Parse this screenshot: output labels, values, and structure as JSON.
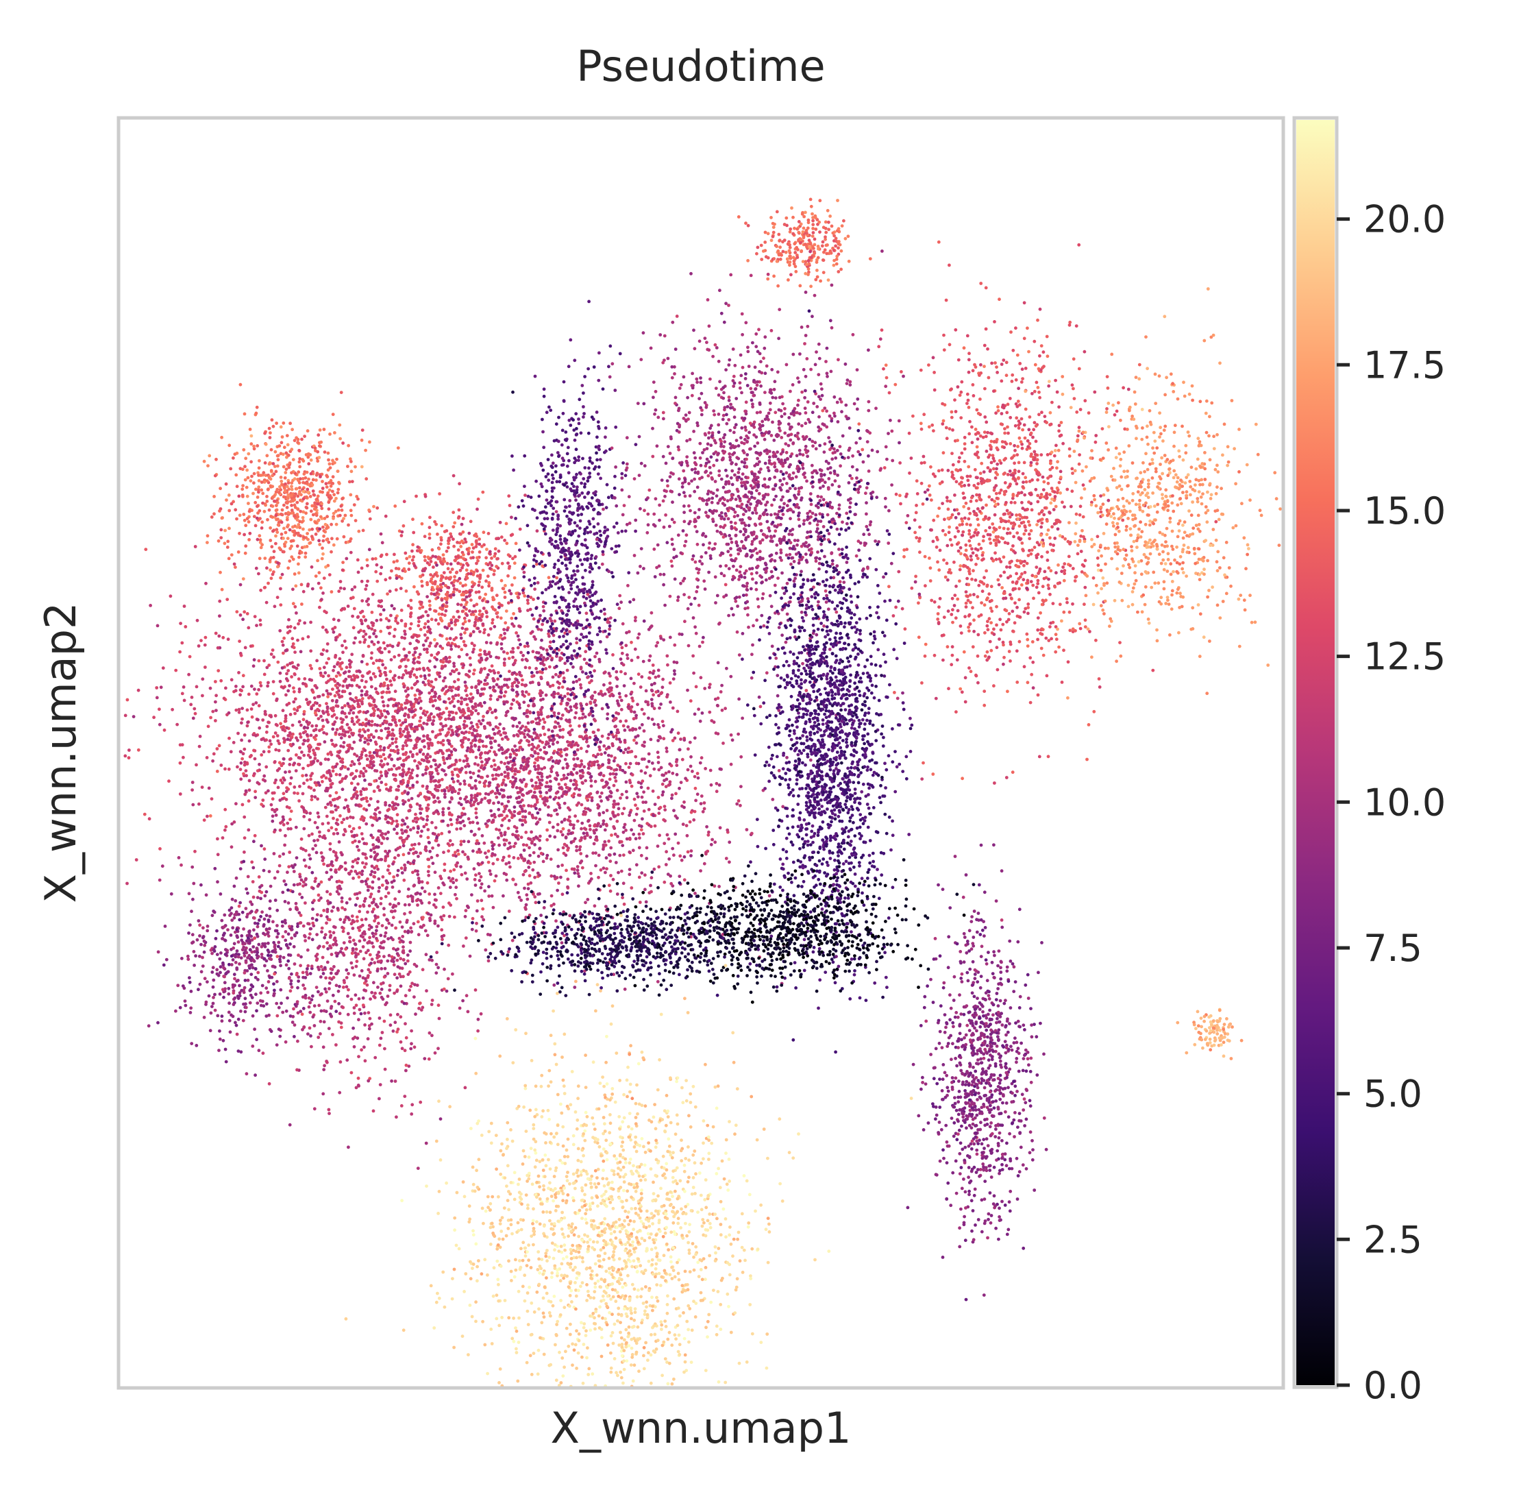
{
  "chart_data": {
    "type": "scatter",
    "title": "Pseudotime",
    "xlabel": "X_wnn.umap1",
    "ylabel": "X_wnn.umap2",
    "x_ticks_shown": false,
    "y_ticks_shown": false,
    "grid": false,
    "colormap": "magma",
    "colorbar": {
      "label": "",
      "vmin": 0.0,
      "vmax": 21.7,
      "ticks": [
        0.0,
        2.5,
        5.0,
        7.5,
        10.0,
        12.5,
        15.0,
        17.5,
        20.0
      ],
      "tick_labels": [
        "0.0",
        "2.5",
        "5.0",
        "7.5",
        "10.0",
        "12.5",
        "15.0",
        "17.5",
        "20.0"
      ]
    },
    "clusters": [
      {
        "name": "top-isolated",
        "x": 0.59,
        "y": 0.9,
        "sx": 0.02,
        "sy": 0.015,
        "n": 260,
        "value": 15.0
      },
      {
        "name": "upper-left-blob",
        "x": 0.15,
        "y": 0.7,
        "sx": 0.03,
        "sy": 0.03,
        "n": 700,
        "value": 15.2
      },
      {
        "name": "upper-left-small",
        "x": 0.29,
        "y": 0.64,
        "sx": 0.03,
        "sy": 0.025,
        "n": 450,
        "value": 14.0
      },
      {
        "name": "left-mass",
        "x": 0.23,
        "y": 0.52,
        "sx": 0.08,
        "sy": 0.06,
        "n": 2600,
        "value": 12.0
      },
      {
        "name": "center-left-mass",
        "x": 0.38,
        "y": 0.49,
        "sx": 0.07,
        "sy": 0.06,
        "n": 2000,
        "value": 11.0
      },
      {
        "name": "left-tail",
        "x": 0.11,
        "y": 0.34,
        "sx": 0.03,
        "sy": 0.03,
        "n": 500,
        "value": 9.0
      },
      {
        "name": "left-lower",
        "x": 0.21,
        "y": 0.36,
        "sx": 0.04,
        "sy": 0.06,
        "n": 900,
        "value": 11.0
      },
      {
        "name": "purple-arm",
        "x": 0.39,
        "y": 0.66,
        "sx": 0.02,
        "sy": 0.06,
        "n": 700,
        "value": 6.0
      },
      {
        "name": "upper-center-band",
        "x": 0.55,
        "y": 0.71,
        "sx": 0.05,
        "sy": 0.06,
        "n": 1600,
        "value": 10.0
      },
      {
        "name": "center-spindle",
        "x": 0.61,
        "y": 0.51,
        "sx": 0.025,
        "sy": 0.08,
        "n": 1800,
        "value": 5.0
      },
      {
        "name": "center-hub",
        "x": 0.57,
        "y": 0.36,
        "sx": 0.05,
        "sy": 0.02,
        "n": 900,
        "value": 1.2
      },
      {
        "name": "left-branch",
        "x": 0.43,
        "y": 0.35,
        "sx": 0.05,
        "sy": 0.015,
        "n": 700,
        "value": 3.0
      },
      {
        "name": "right-branch",
        "x": 0.74,
        "y": 0.25,
        "sx": 0.02,
        "sy": 0.06,
        "n": 900,
        "value": 8.5
      },
      {
        "name": "upper-right-net",
        "x": 0.76,
        "y": 0.69,
        "sx": 0.04,
        "sy": 0.07,
        "n": 1200,
        "value": 13.5
      },
      {
        "name": "far-right-net",
        "x": 0.89,
        "y": 0.69,
        "sx": 0.04,
        "sy": 0.05,
        "n": 700,
        "value": 17.0
      },
      {
        "name": "bottom-mass",
        "x": 0.42,
        "y": 0.12,
        "sx": 0.06,
        "sy": 0.07,
        "n": 1800,
        "value": 20.0
      },
      {
        "name": "small-right",
        "x": 0.94,
        "y": 0.28,
        "sx": 0.01,
        "sy": 0.008,
        "n": 90,
        "value": 18.0
      }
    ]
  }
}
